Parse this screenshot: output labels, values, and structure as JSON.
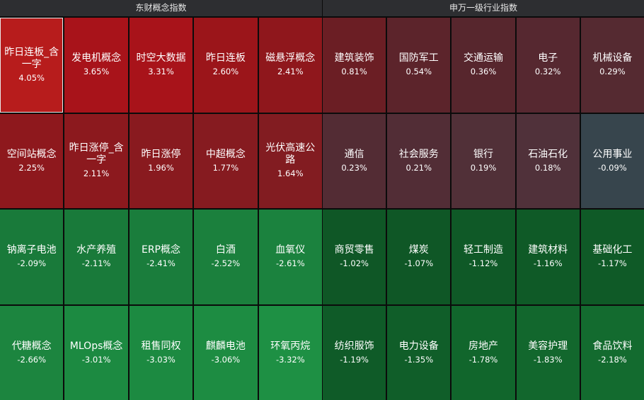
{
  "chart_data": [
    {
      "type": "heatmap",
      "title": "东财概念指数",
      "unit": "%",
      "tiles": [
        {
          "name": "昨日连板_含一字",
          "value": 4.05,
          "label": "4.05%",
          "color": "#b71c1c"
        },
        {
          "name": "发电机概念",
          "value": 3.65,
          "label": "3.65%",
          "color": "#a8131a"
        },
        {
          "name": "时空大数据",
          "value": 3.31,
          "label": "3.31%",
          "color": "#a8131a"
        },
        {
          "name": "昨日连板",
          "value": 2.6,
          "label": "2.60%",
          "color": "#9b151a"
        },
        {
          "name": "磁悬浮概念",
          "value": 2.41,
          "label": "2.41%",
          "color": "#8f171c"
        },
        {
          "name": "空间站概念",
          "value": 2.25,
          "label": "2.25%",
          "color": "#8e181d"
        },
        {
          "name": "昨日涨停_含一字",
          "value": 2.11,
          "label": "2.11%",
          "color": "#8c191e"
        },
        {
          "name": "昨日涨停",
          "value": 1.96,
          "label": "1.96%",
          "color": "#891a1f"
        },
        {
          "name": "中超概念",
          "value": 1.77,
          "label": "1.77%",
          "color": "#861b20"
        },
        {
          "name": "光伏高速公路",
          "value": 1.64,
          "label": "1.64%",
          "color": "#821c21"
        },
        {
          "name": "钠离子电池",
          "value": -2.09,
          "label": "-2.09%",
          "color": "#197a3a"
        },
        {
          "name": "水产养殖",
          "value": -2.11,
          "label": "-2.11%",
          "color": "#197a3a"
        },
        {
          "name": "ERP概念",
          "value": -2.41,
          "label": "-2.41%",
          "color": "#1a7d3c"
        },
        {
          "name": "白酒",
          "value": -2.52,
          "label": "-2.52%",
          "color": "#1b803d"
        },
        {
          "name": "血氧仪",
          "value": -2.61,
          "label": "-2.61%",
          "color": "#1b823e"
        },
        {
          "name": "代糖概念",
          "value": -2.66,
          "label": "-2.66%",
          "color": "#1c853f"
        },
        {
          "name": "MLOps概念",
          "value": -3.01,
          "label": "-3.01%",
          "color": "#1c8a41"
        },
        {
          "name": "租售同权",
          "value": -3.03,
          "label": "-3.03%",
          "color": "#1c8a41"
        },
        {
          "name": "麒麟电池",
          "value": -3.06,
          "label": "-3.06%",
          "color": "#1d8c42"
        },
        {
          "name": "环氧丙烷",
          "value": -3.32,
          "label": "-3.32%",
          "color": "#1e9044"
        }
      ]
    },
    {
      "type": "heatmap",
      "title": "申万一级行业指数",
      "unit": "%",
      "tiles": [
        {
          "name": "建筑装饰",
          "value": 0.81,
          "label": "0.81%",
          "color": "#6b1e24"
        },
        {
          "name": "国防军工",
          "value": 0.54,
          "label": "0.54%",
          "color": "#5c242b"
        },
        {
          "name": "交通运输",
          "value": 0.36,
          "label": "0.36%",
          "color": "#57262d"
        },
        {
          "name": "电子",
          "value": 0.32,
          "label": "0.32%",
          "color": "#562830"
        },
        {
          "name": "机械设备",
          "value": 0.29,
          "label": "0.29%",
          "color": "#552a31"
        },
        {
          "name": "通信",
          "value": 0.23,
          "label": "0.23%",
          "color": "#532c34"
        },
        {
          "name": "社会服务",
          "value": 0.21,
          "label": "0.21%",
          "color": "#522d36"
        },
        {
          "name": "银行",
          "value": 0.19,
          "label": "0.19%",
          "color": "#513038"
        },
        {
          "name": "石油石化",
          "value": 0.18,
          "label": "0.18%",
          "color": "#50313a"
        },
        {
          "name": "公用事业",
          "value": -0.09,
          "label": "-0.09%",
          "color": "#37454d"
        },
        {
          "name": "商贸零售",
          "value": -1.02,
          "label": "-1.02%",
          "color": "#0f5726"
        },
        {
          "name": "煤炭",
          "value": -1.07,
          "label": "-1.07%",
          "color": "#0f5726"
        },
        {
          "name": "轻工制造",
          "value": -1.12,
          "label": "-1.12%",
          "color": "#0f5927"
        },
        {
          "name": "建筑材料",
          "value": -1.16,
          "label": "-1.16%",
          "color": "#0f5a27"
        },
        {
          "name": "基础化工",
          "value": -1.17,
          "label": "-1.17%",
          "color": "#0f5a27"
        },
        {
          "name": "纺织服饰",
          "value": -1.19,
          "label": "-1.19%",
          "color": "#0f5b28"
        },
        {
          "name": "电力设备",
          "value": -1.35,
          "label": "-1.35%",
          "color": "#105e29"
        },
        {
          "name": "房地产",
          "value": -1.78,
          "label": "-1.78%",
          "color": "#11662c"
        },
        {
          "name": "美容护理",
          "value": -1.83,
          "label": "-1.83%",
          "color": "#12672d"
        },
        {
          "name": "食品饮料",
          "value": -2.18,
          "label": "-2.18%",
          "color": "#136b2f"
        }
      ]
    }
  ]
}
